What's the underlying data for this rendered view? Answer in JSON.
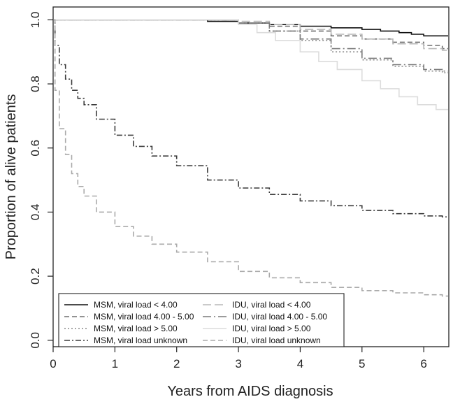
{
  "chart_data": {
    "type": "line",
    "title": "",
    "xlabel": "Years from AIDS diagnosis",
    "ylabel": "Proportion of alive patients",
    "xlim": [
      0,
      6.7
    ],
    "ylim": [
      -0.02,
      1.04
    ],
    "x_ticks": [
      0,
      1,
      2,
      3,
      4,
      5,
      6
    ],
    "x_tick_labels": [
      "0",
      "1",
      "2",
      "3",
      "4",
      "5",
      "6"
    ],
    "y_ticks": [
      0.0,
      0.2,
      0.4,
      0.6,
      0.8,
      1.0
    ],
    "y_tick_labels": [
      "0.0",
      "0.2",
      "0.4",
      "0.6",
      "0.8",
      "1.0"
    ],
    "grid": false,
    "legend_position": "bottom-left",
    "series": [
      {
        "name": "MSM, viral load < 4.00",
        "color": "#111111",
        "dash": "solid",
        "x": [
          0,
          1,
          2,
          2.5,
          3,
          3.5,
          4,
          4.5,
          5,
          5.3,
          5.6,
          5.8,
          6.0,
          6.2,
          6.5,
          6.7
        ],
        "y": [
          1.0,
          1.0,
          1.0,
          0.995,
          0.99,
          0.985,
          0.98,
          0.975,
          0.97,
          0.965,
          0.96,
          0.955,
          0.95,
          0.95,
          0.95,
          0.95
        ]
      },
      {
        "name": "MSM, viral load 4.00 - 5.00",
        "color": "#6e6e6e",
        "dash": "dashed",
        "x": [
          0,
          1.5,
          2.5,
          3,
          3.5,
          4,
          4.5,
          5,
          5.5,
          6,
          6.3,
          6.5,
          6.7
        ],
        "y": [
          1.0,
          1.0,
          1.0,
          0.99,
          0.98,
          0.965,
          0.95,
          0.94,
          0.93,
          0.92,
          0.91,
          0.905,
          0.9
        ]
      },
      {
        "name": "MSM, viral load > 5.00",
        "color": "#8a8a8a",
        "dash": "dotted",
        "x": [
          0,
          2,
          2.7,
          3,
          3.5,
          4,
          4.5,
          5,
          5.5,
          6,
          6.3,
          6.5,
          6.7
        ],
        "y": [
          1.0,
          1.0,
          1.0,
          0.99,
          0.965,
          0.935,
          0.9,
          0.875,
          0.855,
          0.84,
          0.835,
          0.83,
          0.83
        ]
      },
      {
        "name": "MSM, viral load unknown",
        "color": "#3c3c3c",
        "dash": "dashdot",
        "x": [
          0,
          0.03,
          0.1,
          0.2,
          0.3,
          0.4,
          0.5,
          0.7,
          1,
          1.3,
          1.6,
          2,
          2.5,
          3,
          3.5,
          4,
          4.5,
          5,
          5.5,
          6,
          6.3,
          6.5,
          6.7
        ],
        "y": [
          1.0,
          0.92,
          0.86,
          0.815,
          0.78,
          0.755,
          0.735,
          0.69,
          0.64,
          0.605,
          0.575,
          0.545,
          0.5,
          0.475,
          0.455,
          0.435,
          0.42,
          0.405,
          0.395,
          0.388,
          0.385,
          0.385,
          0.385
        ]
      },
      {
        "name": "IDU, viral load < 4.00",
        "color": "#b8b8b8",
        "dash": "longdash",
        "x": [
          0,
          1.5,
          2.5,
          3,
          3.5,
          4,
          4.5,
          5,
          5.5,
          6,
          6.3,
          6.5,
          6.7
        ],
        "y": [
          1.0,
          1.0,
          1.0,
          0.995,
          0.985,
          0.97,
          0.955,
          0.94,
          0.925,
          0.91,
          0.905,
          0.9,
          0.9
        ]
      },
      {
        "name": "IDU, viral load 4.00 - 5.00",
        "color": "#7a7a7a",
        "dash": "dashdot-long",
        "x": [
          0,
          2,
          2.7,
          3,
          3.5,
          4,
          4.5,
          5,
          5.5,
          6,
          6.3,
          6.5,
          6.7
        ],
        "y": [
          1.0,
          1.0,
          1.0,
          0.99,
          0.965,
          0.94,
          0.91,
          0.88,
          0.86,
          0.845,
          0.84,
          0.835,
          0.835
        ]
      },
      {
        "name": "IDU, viral load > 5.00",
        "color": "#dcdcdc",
        "dash": "solid",
        "x": [
          0,
          2,
          2.8,
          3,
          3.3,
          3.6,
          4,
          4.3,
          4.6,
          5,
          5.3,
          5.6,
          5.9,
          6.2,
          6.5,
          6.7
        ],
        "y": [
          1.0,
          1.0,
          1.0,
          0.985,
          0.96,
          0.935,
          0.9,
          0.87,
          0.845,
          0.81,
          0.785,
          0.76,
          0.735,
          0.72,
          0.715,
          0.715
        ]
      },
      {
        "name": "IDU, viral load unknown",
        "color": "#aaaaaa",
        "dash": "dashed",
        "x": [
          0,
          0.03,
          0.1,
          0.2,
          0.3,
          0.4,
          0.5,
          0.7,
          1,
          1.3,
          1.6,
          2,
          2.5,
          3,
          3.5,
          4,
          4.5,
          5,
          5.5,
          6,
          6.3,
          6.5,
          6.7
        ],
        "y": [
          1.0,
          0.78,
          0.66,
          0.58,
          0.52,
          0.48,
          0.45,
          0.4,
          0.355,
          0.325,
          0.3,
          0.275,
          0.245,
          0.215,
          0.195,
          0.18,
          0.165,
          0.155,
          0.148,
          0.142,
          0.138,
          0.136,
          0.135
        ]
      }
    ]
  }
}
